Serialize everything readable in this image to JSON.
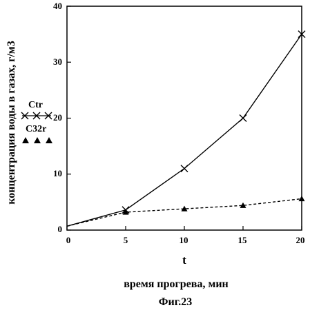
{
  "chart_data": {
    "type": "line",
    "xlim": [
      0,
      20
    ],
    "ylim": [
      0,
      40
    ],
    "x_ticks": [
      "0",
      "5",
      "10",
      "15",
      "20"
    ],
    "y_ticks": [
      "0",
      "10",
      "20",
      "30",
      "40"
    ],
    "x_variable": "t",
    "xlabel": "время прогрева, мин",
    "ylabel": "концентрация воды в газах, г/м3",
    "caption": "Фиг.23",
    "legend_position": "left",
    "series": [
      {
        "name": "Ctr",
        "marker": "x",
        "line_style": "solid",
        "x": [
          0,
          5,
          10,
          15,
          20
        ],
        "y": [
          0.7,
          3.6,
          11,
          20,
          35
        ]
      },
      {
        "name": "C32r",
        "marker": "triangle",
        "line_style": "dashed",
        "x": [
          0,
          5,
          10,
          15,
          20
        ],
        "y": [
          0.7,
          3.2,
          3.8,
          4.4,
          5.6
        ]
      }
    ]
  }
}
